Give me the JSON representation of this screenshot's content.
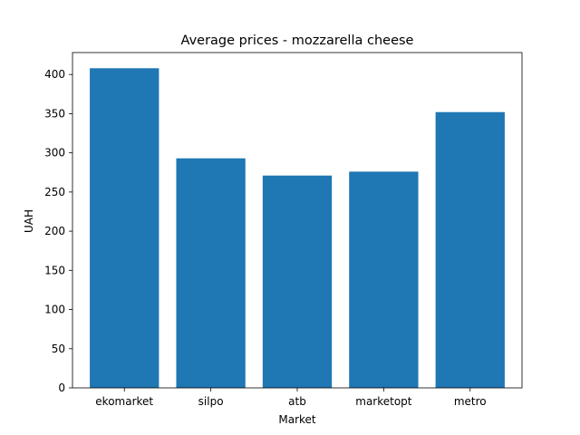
{
  "chart_data": {
    "type": "bar",
    "title": "Average prices - mozzarella cheese",
    "xlabel": "Market",
    "ylabel": "UAH",
    "categories": [
      "ekomarket",
      "silpo",
      "atb",
      "marketopt",
      "metro"
    ],
    "values": [
      408,
      293,
      271,
      276,
      352
    ],
    "ylim": [
      0,
      428
    ],
    "yticks": [
      0,
      50,
      100,
      150,
      200,
      250,
      300,
      350,
      400
    ],
    "bar_color": "#1f77b4",
    "grid": false,
    "legend": "none"
  }
}
